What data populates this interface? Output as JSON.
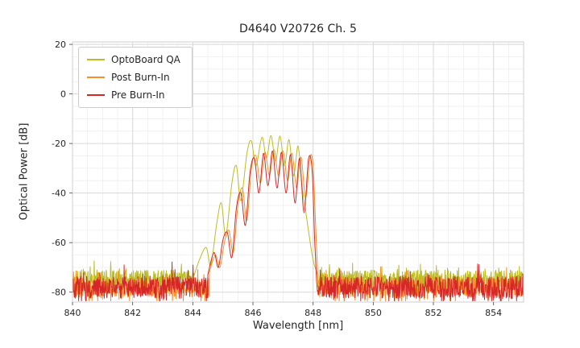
{
  "chart_data": {
    "type": "line",
    "title": "D4640 V20726 Ch. 5",
    "xlabel": "Wavelength [nm]",
    "ylabel": "Optical Power [dB]",
    "xlim": [
      840,
      855
    ],
    "ylim": [
      -84,
      21
    ],
    "xticks": [
      840,
      842,
      844,
      846,
      848,
      850,
      852,
      854
    ],
    "yticks": [
      20,
      0,
      -20,
      -40,
      -60,
      -80
    ],
    "grid": true,
    "x_minor_step": 0.5,
    "y_minor_step": 5,
    "grid_major_color": "#d9d9d9",
    "grid_minor_color": "#ececec",
    "legend_position": "upper-left",
    "series": [
      {
        "name": "OptoBoard QA",
        "color": "#bcbd22",
        "noise_floor_db": -74.5,
        "noise_pp_db": 7,
        "noise_spike_down_db": 5,
        "noise_spike_up_db": 4,
        "envelope": [
          [
            844.05,
            -73
          ],
          [
            844.25,
            -66
          ],
          [
            844.45,
            -62
          ],
          [
            844.6,
            -69
          ],
          [
            844.8,
            -52
          ],
          [
            844.95,
            -44
          ],
          [
            845.1,
            -57
          ],
          [
            845.3,
            -36
          ],
          [
            845.45,
            -29
          ],
          [
            845.6,
            -43
          ],
          [
            845.8,
            -24
          ],
          [
            845.95,
            -19
          ],
          [
            846.1,
            -29
          ],
          [
            846.3,
            -17.5
          ],
          [
            846.45,
            -26
          ],
          [
            846.6,
            -16.8
          ],
          [
            846.75,
            -27
          ],
          [
            846.9,
            -17
          ],
          [
            847.05,
            -29
          ],
          [
            847.2,
            -18.5
          ],
          [
            847.35,
            -33
          ],
          [
            847.5,
            -21
          ],
          [
            847.62,
            -36
          ],
          [
            847.75,
            -47
          ],
          [
            847.88,
            -58
          ],
          [
            848.0,
            -67
          ],
          [
            848.15,
            -73
          ]
        ]
      },
      {
        "name": "Post Burn-In",
        "color": "#fd8d28",
        "noise_floor_db": -78,
        "noise_pp_db": 8,
        "noise_spike_down_db": 6,
        "noise_spike_up_db": 6,
        "envelope": [
          [
            844.55,
            -72
          ],
          [
            844.75,
            -65
          ],
          [
            844.9,
            -70
          ],
          [
            845.05,
            -60
          ],
          [
            845.2,
            -55
          ],
          [
            845.35,
            -64
          ],
          [
            845.5,
            -45
          ],
          [
            845.65,
            -38
          ],
          [
            845.8,
            -51
          ],
          [
            845.95,
            -30
          ],
          [
            846.1,
            -25
          ],
          [
            846.25,
            -36
          ],
          [
            846.4,
            -23.5
          ],
          [
            846.55,
            -33
          ],
          [
            846.7,
            -22.5
          ],
          [
            846.85,
            -33
          ],
          [
            847.0,
            -23
          ],
          [
            847.15,
            -35
          ],
          [
            847.3,
            -24
          ],
          [
            847.45,
            -38
          ],
          [
            847.6,
            -25.5
          ],
          [
            847.75,
            -42
          ],
          [
            847.9,
            -25.5
          ],
          [
            848.0,
            -29
          ],
          [
            848.08,
            -52
          ],
          [
            848.16,
            -74
          ]
        ]
      },
      {
        "name": "Pre Burn-In",
        "color": "#d62728",
        "noise_floor_db": -78,
        "noise_pp_db": 9,
        "noise_spike_down_db": 6,
        "noise_spike_up_db": 6,
        "envelope": [
          [
            844.5,
            -73
          ],
          [
            844.7,
            -64
          ],
          [
            844.85,
            -70
          ],
          [
            845.0,
            -59
          ],
          [
            845.15,
            -56
          ],
          [
            845.3,
            -66
          ],
          [
            845.45,
            -46
          ],
          [
            845.6,
            -40
          ],
          [
            845.75,
            -53
          ],
          [
            845.9,
            -32
          ],
          [
            846.05,
            -26
          ],
          [
            846.2,
            -40
          ],
          [
            846.35,
            -24
          ],
          [
            846.5,
            -37
          ],
          [
            846.65,
            -23
          ],
          [
            846.8,
            -38
          ],
          [
            846.95,
            -23.5
          ],
          [
            847.1,
            -40
          ],
          [
            847.25,
            -24.5
          ],
          [
            847.4,
            -44
          ],
          [
            847.55,
            -26
          ],
          [
            847.7,
            -48
          ],
          [
            847.85,
            -26
          ],
          [
            847.97,
            -31
          ],
          [
            848.05,
            -58
          ],
          [
            848.12,
            -76
          ]
        ]
      }
    ]
  }
}
